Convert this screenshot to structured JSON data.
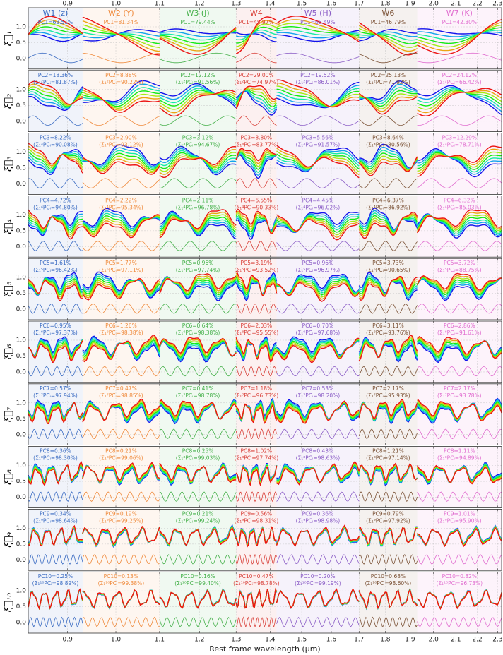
{
  "chart_data": {
    "type": "line",
    "xlabel": "Rest frame wavelength (μm)",
    "xscale": "log",
    "xlim": [
      0.826,
      2.32
    ],
    "xticks": [
      0.9,
      {
        "value": 1.0,
        "label": "1.0"
      },
      1.1,
      1.2,
      1.3,
      1.4,
      1.5,
      1.6,
      1.7,
      1.8,
      1.9,
      {
        "value": 2.0,
        "label": "2.0"
      },
      2.1,
      2.2,
      2.3
    ],
    "ylim": [
      -0.33,
      1.6
    ],
    "yticks": [
      {
        "value": 0.0,
        "label": "0.0"
      },
      0.5,
      {
        "value": 1.0,
        "label": "1.0"
      }
    ],
    "windows": [
      {
        "label": "W1 (z)",
        "color": "#3a6bc2",
        "range": [
          0.826,
          0.93
        ]
      },
      {
        "label": "W2 (Y)",
        "color": "#ef8a3c",
        "range": [
          0.93,
          1.1
        ]
      },
      {
        "label": "W3 (J)",
        "color": "#45b04a",
        "range": [
          1.1,
          1.3
        ]
      },
      {
        "label": "W4",
        "color": "#d9423b",
        "range": [
          1.3,
          1.42
        ]
      },
      {
        "label": "W5 (H)",
        "color": "#8a5cc6",
        "range": [
          1.42,
          1.7
        ]
      },
      {
        "label": "W6",
        "color": "#7b5236",
        "range": [
          1.7,
          1.93
        ]
      },
      {
        "label": "W7 (K)",
        "color": "#e06ccf",
        "range": [
          1.93,
          2.32
        ]
      }
    ],
    "rows": [
      {
        "ylabel": "ξ⃗₁",
        "pc": [
          "PC1=63.51%",
          "PC1=81.34%",
          "PC1=79.44%",
          "PC1=45.97%",
          "PC1=66.49%",
          "PC1=46.79%",
          "PC1=42.30%"
        ],
        "cum": []
      },
      {
        "ylabel": "ξ⃗₂",
        "pc": [
          "PC2=18.36%",
          "PC2=8.88%",
          "PC2=12.12%",
          "PC2=29.00%",
          "PC2=19.52%",
          "PC2=25.13%",
          "PC2=24.12%"
        ],
        "cum": [
          "(Σ₁²PCᵢ=81.87%)",
          "(Σ₁²PCᵢ=90.22%)",
          "(Σ₁²PCᵢ=91.56%)",
          "(Σ₁²PCᵢ=74.97%)",
          "(Σ₁²PCᵢ=86.01%)",
          "(Σ₁²PCᵢ=71.92%)",
          "(Σ₁²PCᵢ=66.42%)"
        ]
      },
      {
        "ylabel": "ξ⃗₃",
        "pc": [
          "PC3=8.22%",
          "PC3=2.90%",
          "PC3=3.12%",
          "PC3=8.80%",
          "PC3=5.56%",
          "PC3=8.64%",
          "PC3=12.29%"
        ],
        "cum": [
          "(Σ₁³PCᵢ=90.08%)",
          "(Σ₁³PCᵢ=93.12%)",
          "(Σ₁³PCᵢ=94.67%)",
          "(Σ₁³PCᵢ=83.77%)",
          "(Σ₁³PCᵢ=91.57%)",
          "(Σ₁³PCᵢ=80.56%)",
          "(Σ₁³PCᵢ=78.71%)"
        ]
      },
      {
        "ylabel": "ξ⃗₄",
        "pc": [
          "PC4=4.72%",
          "PC4=2.22%",
          "PC4=2.11%",
          "PC4=6.55%",
          "PC4=4.45%",
          "PC4=6.37%",
          "PC4=6.32%"
        ],
        "cum": [
          "(Σ₁⁴PCᵢ=94.80%)",
          "(Σ₁⁴PCᵢ=95.34%)",
          "(Σ₁⁴PCᵢ=96.78%)",
          "(Σ₁⁴PCᵢ=90.33%)",
          "(Σ₁⁴PCᵢ=96.02%)",
          "(Σ₁⁴PCᵢ=86.92%)",
          "(Σ₁⁴PCᵢ=85.03%)"
        ]
      },
      {
        "ylabel": "ξ⃗₅",
        "pc": [
          "PC5=1.61%",
          "PC5=1.77%",
          "PC5=0.96%",
          "PC5=3.19%",
          "PC5=0.96%",
          "PC5=3.73%",
          "PC5=3.72%"
        ],
        "cum": [
          "(Σ₁⁵PCᵢ=96.42%)",
          "(Σ₁⁵PCᵢ=97.11%)",
          "(Σ₁⁵PCᵢ=97.74%)",
          "(Σ₁⁵PCᵢ=93.52%)",
          "(Σ₁⁵PCᵢ=96.97%)",
          "(Σ₁⁵PCᵢ=90.65%)",
          "(Σ₁⁵PCᵢ=88.75%)"
        ]
      },
      {
        "ylabel": "ξ⃗₆",
        "pc": [
          "PC6=0.95%",
          "PC6=1.26%",
          "PC6=0.64%",
          "PC6=2.03%",
          "PC6=0.70%",
          "PC6=3.11%",
          "PC6=2.86%"
        ],
        "cum": [
          "(Σ₁⁶PCᵢ=97.37%)",
          "(Σ₁⁶PCᵢ=98.38%)",
          "(Σ₁⁶PCᵢ=98.38%)",
          "(Σ₁⁶PCᵢ=95.55%)",
          "(Σ₁⁶PCᵢ=97.68%)",
          "(Σ₁⁶PCᵢ=93.76%)",
          "(Σ₁⁶PCᵢ=91.61%)"
        ]
      },
      {
        "ylabel": "ξ⃗₇",
        "pc": [
          "PC7=0.57%",
          "PC7=0.47%",
          "PC7=0.41%",
          "PC7=1.18%",
          "PC7=0.53%",
          "PC7=2.17%",
          "PC7=2.17%"
        ],
        "cum": [
          "(Σ₁⁷PCᵢ=97.94%)",
          "(Σ₁⁷PCᵢ=98.85%)",
          "(Σ₁⁷PCᵢ=98.78%)",
          "(Σ₁⁷PCᵢ=96.73%)",
          "(Σ₁⁷PCᵢ=98.20%)",
          "(Σ₁⁷PCᵢ=95.93%)",
          "(Σ₁⁷PCᵢ=93.78%)"
        ]
      },
      {
        "ylabel": "ξ⃗₈",
        "pc": [
          "PC8=0.36%",
          "PC8=0.21%",
          "PC8=0.25%",
          "PC8=1.02%",
          "PC8=0.43%",
          "PC8=1.21%",
          "PC8=1.11%"
        ],
        "cum": [
          "(Σ₁⁸PCᵢ=98.30%)",
          "(Σ₁⁸PCᵢ=99.06%)",
          "(Σ₁⁸PCᵢ=99.03%)",
          "(Σ₁⁸PCᵢ=97.74%)",
          "(Σ₁⁸PCᵢ=98.63%)",
          "(Σ₁⁸PCᵢ=97.14%)",
          "(Σ₁⁸PCᵢ=94.89%)"
        ]
      },
      {
        "ylabel": "ξ⃗₉",
        "pc": [
          "PC9=0.34%",
          "PC9=0.19%",
          "PC9=0.21%",
          "PC9=0.56%",
          "PC9=0.36%",
          "PC9=0.79%",
          "PC9=1.01%"
        ],
        "cum": [
          "(Σ₁⁹PCᵢ=98.64%)",
          "(Σ₁⁹PCᵢ=99.25%)",
          "(Σ₁⁹PCᵢ=99.24%)",
          "(Σ₁⁹PCᵢ=98.31%)",
          "(Σ₁⁹PCᵢ=98.98%)",
          "(Σ₁⁹PCᵢ=97.92%)",
          "(Σ₁⁹PCᵢ=95.90%)"
        ]
      },
      {
        "ylabel": "ξ⃗₁₀",
        "pc": [
          "PC10=0.25%",
          "PC10=0.13%",
          "PC10=0.16%",
          "PC10=0.47%",
          "PC10=0.20%",
          "PC10=0.68%",
          "PC10=0.82%"
        ],
        "cum": [
          "(Σ₁¹⁰PCᵢ=98.89%)",
          "(Σ₁¹⁰PCᵢ=99.38%)",
          "(Σ₁¹⁰PCᵢ=99.40%)",
          "(Σ₁¹⁰PCᵢ=98.78%)",
          "(Σ₁¹⁰PCᵢ=99.19%)",
          "(Σ₁¹⁰PCᵢ=98.60%)",
          "(Σ₁¹⁰PCᵢ=96.73%)"
        ]
      }
    ]
  }
}
